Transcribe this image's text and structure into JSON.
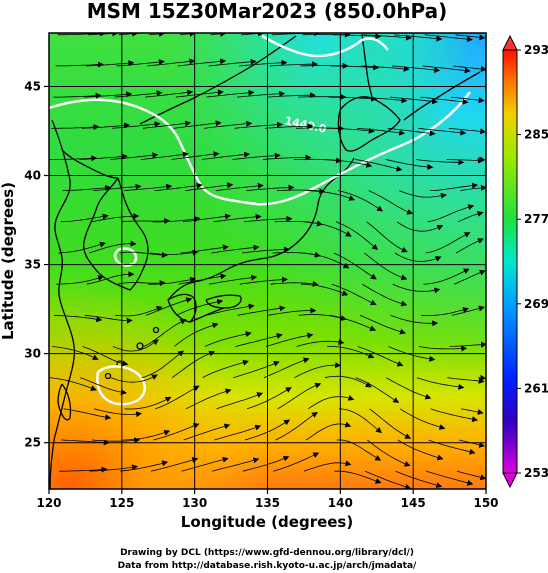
{
  "title": "MSM 15Z30Mar2023 (850.0hPa)",
  "xlabel": "Longitude (degrees)",
  "ylabel": "Latitude  (degrees)",
  "credits": [
    "Drawing by DCL (https://www.gfd-dennou.org/library/dcl/)",
    "Data from http://database.rish.kyoto-u.ac.jp/arch/jmadata/"
  ],
  "contour_label": "1440.0",
  "map_data": {
    "type": "map-contour",
    "variable": "temperature with streamlines",
    "lon_range": [
      120,
      150
    ],
    "lat_range": [
      22.4,
      48
    ],
    "lon_ticks": [
      120,
      125,
      130,
      135,
      140,
      145,
      150
    ],
    "lat_ticks": [
      25,
      30,
      35,
      40,
      45
    ],
    "grid": true,
    "colorbar": {
      "min": 253,
      "max": 293,
      "ticks": [
        253,
        261,
        269,
        277,
        285,
        293
      ],
      "colors": [
        "#e000e0",
        "#1000b0",
        "#0040ff",
        "#00d0ff",
        "#20e060",
        "#60e000",
        "#e8e800",
        "#ff8000",
        "#ff2000"
      ]
    }
  }
}
